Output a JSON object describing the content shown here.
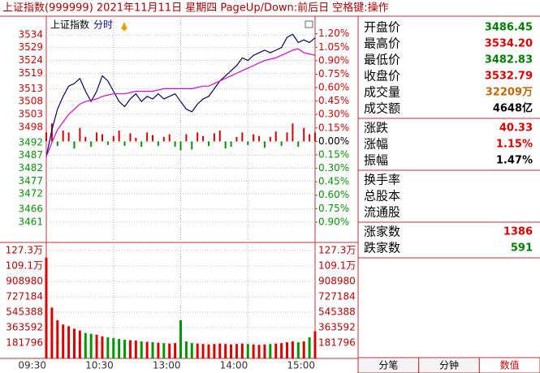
{
  "header": {
    "title": "上证指数(999999) 2021年11月11日 星期四 PageUp/Down:前后日 空格键:操作"
  },
  "chart_data": [
    {
      "type": "line",
      "mode": "分时",
      "xlim": [
        0,
        48
      ],
      "ylim": [
        3453.4,
        3540.6
      ],
      "yticks": [
        3534,
        3529,
        3524,
        3519,
        3513,
        3508,
        3503,
        3498,
        3492,
        3487,
        3482,
        3477,
        3472,
        3466,
        3461
      ],
      "y2lim": [
        -1.118,
        1.378
      ],
      "y2ticks": [
        {
          "value": 1.2,
          "label": "1.20%"
        },
        {
          "value": 1.05,
          "label": "1.05%"
        },
        {
          "value": 0.9,
          "label": "0.90%"
        },
        {
          "value": 0.75,
          "label": "0.75%"
        },
        {
          "value": 0.6,
          "label": "0.60%"
        },
        {
          "value": 0.45,
          "label": "0.45%"
        },
        {
          "value": 0.3,
          "label": "0.30%"
        },
        {
          "value": 0.15,
          "label": "0.15%"
        },
        {
          "value": 0,
          "label": "0.00%"
        },
        {
          "value": -0.15,
          "label": "0.15%"
        },
        {
          "value": -0.3,
          "label": "0.30%"
        },
        {
          "value": -0.45,
          "label": "0.45%"
        },
        {
          "value": -0.6,
          "label": "0.60%"
        },
        {
          "value": -0.75,
          "label": "0.75%"
        },
        {
          "value": -0.9,
          "label": "0.90%"
        }
      ],
      "grid": true,
      "up_color": "#e00000",
      "down_color": "#009900",
      "flat_color": "#000000",
      "series": [
        {
          "name": "上证指数",
          "color": "#00007a",
          "values": [
            3486.45,
            3497,
            3505,
            3510,
            3514,
            3515,
            3517,
            3512,
            3508,
            3512,
            3518,
            3516,
            3512,
            3508,
            3506,
            3509,
            3511,
            3508,
            3510,
            3509,
            3511,
            3509,
            3510,
            3511,
            3508,
            3505,
            3504,
            3507,
            3509,
            3510,
            3513,
            3516,
            3518,
            3520,
            3522,
            3525,
            3524,
            3526,
            3527,
            3528,
            3527,
            3528,
            3529,
            3533,
            3534.2,
            3531,
            3532,
            3531,
            3532.79
          ]
        },
        {
          "color": "#e000e0",
          "values": [
            3486.5,
            3492,
            3497,
            3500,
            3503,
            3505,
            3507,
            3508,
            3508.5,
            3509,
            3510,
            3510.5,
            3511,
            3511,
            3511,
            3511.5,
            3512,
            3512,
            3512,
            3512,
            3512.5,
            3513,
            3513,
            3513,
            3513,
            3513,
            3513,
            3513.5,
            3514,
            3514,
            3515,
            3516,
            3517,
            3518,
            3519,
            3520,
            3521,
            3522,
            3523,
            3524,
            3524.5,
            3525,
            3526,
            3527,
            3528,
            3528.5,
            3527,
            3526.5,
            3526
          ]
        },
        {
          "type": "bar",
          "axis": "y2",
          "values": [
            0.1,
            0.2,
            -0.05,
            0.12,
            0.1,
            -0.08,
            0.15,
            0.05,
            -0.06,
            0.1,
            0.08,
            -0.04,
            0.06,
            0.12,
            -0.05,
            0.09,
            0.04,
            -0.06,
            0.1,
            0.07,
            -0.05,
            0.05,
            0.08,
            -0.06,
            -0.1,
            0.08,
            -0.09,
            0.1,
            0.06,
            -0.05,
            0.09,
            0.12,
            -0.08,
            -0.06,
            0.05,
            0.1,
            -0.04,
            0.08,
            0.06,
            -0.07,
            0.05,
            0.11,
            -0.05,
            0.1,
            0.2,
            -0.06,
            0.15,
            0.08,
            0.1
          ]
        }
      ]
    },
    {
      "type": "bar",
      "xlim": [
        0,
        48
      ],
      "xticks": [
        {
          "value": 0,
          "label": "09:30"
        },
        {
          "value": 12,
          "label": "10:30"
        },
        {
          "value": 24,
          "label": "13:00"
        },
        {
          "value": 36,
          "label": "14:00"
        },
        {
          "value": 48,
          "label": "15:00"
        }
      ],
      "ylim": [
        0,
        1358700
      ],
      "yticks": [
        {
          "value": 1272572,
          "label": "127.3万"
        },
        {
          "value": 1090776,
          "label": "109.1万"
        },
        908980,
        727184,
        545388,
        363592,
        181796
      ],
      "grid": true,
      "values": [
        1190000,
        600000,
        450000,
        400000,
        380000,
        350000,
        330000,
        300000,
        290000,
        280000,
        260000,
        250000,
        240000,
        230000,
        220000,
        215000,
        210000,
        200000,
        195000,
        190000,
        185000,
        180000,
        175000,
        180000,
        450000,
        200000,
        180000,
        175000,
        170000,
        165000,
        170000,
        175000,
        170000,
        165000,
        170000,
        175000,
        170000,
        165000,
        160000,
        165000,
        170000,
        175000,
        180000,
        190000,
        200000,
        190000,
        200000,
        250000,
        320000
      ]
    }
  ],
  "quote": {
    "sections": [
      [
        {
          "label": "开盘价",
          "value": "3486.45",
          "color": "#008000"
        },
        {
          "label": "最高价",
          "value": "3534.20",
          "color": "#e00000"
        },
        {
          "label": "最低价",
          "value": "3482.83",
          "color": "#008000"
        },
        {
          "label": "收盘价",
          "value": "3532.79",
          "color": "#e00000"
        },
        {
          "label": "成交量",
          "value": "32209万",
          "color": "#c86400"
        },
        {
          "label": "成交额",
          "value": "4648亿",
          "color": "#000000"
        }
      ],
      [
        {
          "label": "涨跌",
          "value": "40.33",
          "color": "#e00000"
        },
        {
          "label": "涨幅",
          "value": "1.15%",
          "color": "#e00000"
        },
        {
          "label": "振幅",
          "value": "1.47%",
          "color": "#000000"
        }
      ],
      [
        {
          "label": "换手率"
        },
        {
          "label": "总股本"
        },
        {
          "label": "流通股"
        }
      ],
      [
        {
          "label": "涨家数",
          "value": "1386",
          "color": "#e00000"
        },
        {
          "label": "跌家数",
          "value": "591",
          "color": "#008000"
        }
      ]
    ]
  },
  "tabs": [
    {
      "label": "分笔"
    },
    {
      "label": "分钟"
    },
    {
      "label": "数值",
      "active": true
    }
  ]
}
